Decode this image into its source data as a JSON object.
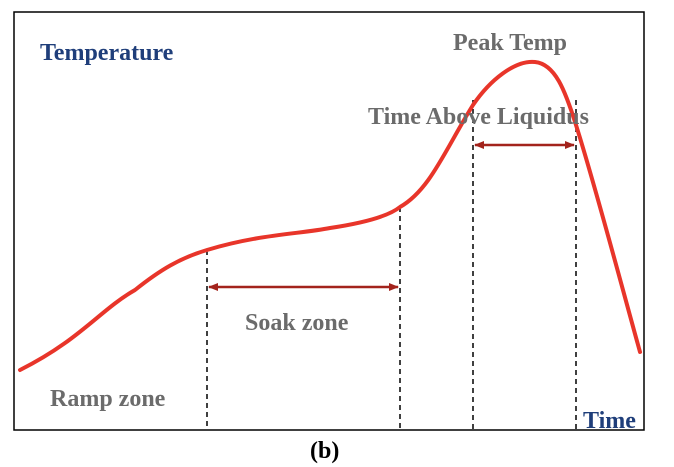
{
  "labels": {
    "y_axis": "Temperature",
    "x_axis": "Time",
    "peak": "Peak Temp",
    "tal": "Time Above Liquidus",
    "soak": "Soak zone",
    "ramp": "Ramp zone",
    "caption": "(b)"
  },
  "colors": {
    "curve": "#e8352a",
    "arrow": "#a3231c",
    "axis_label": "#1f3e7a",
    "zone_label": "#6b6b6b",
    "frame": "#000000"
  }
}
